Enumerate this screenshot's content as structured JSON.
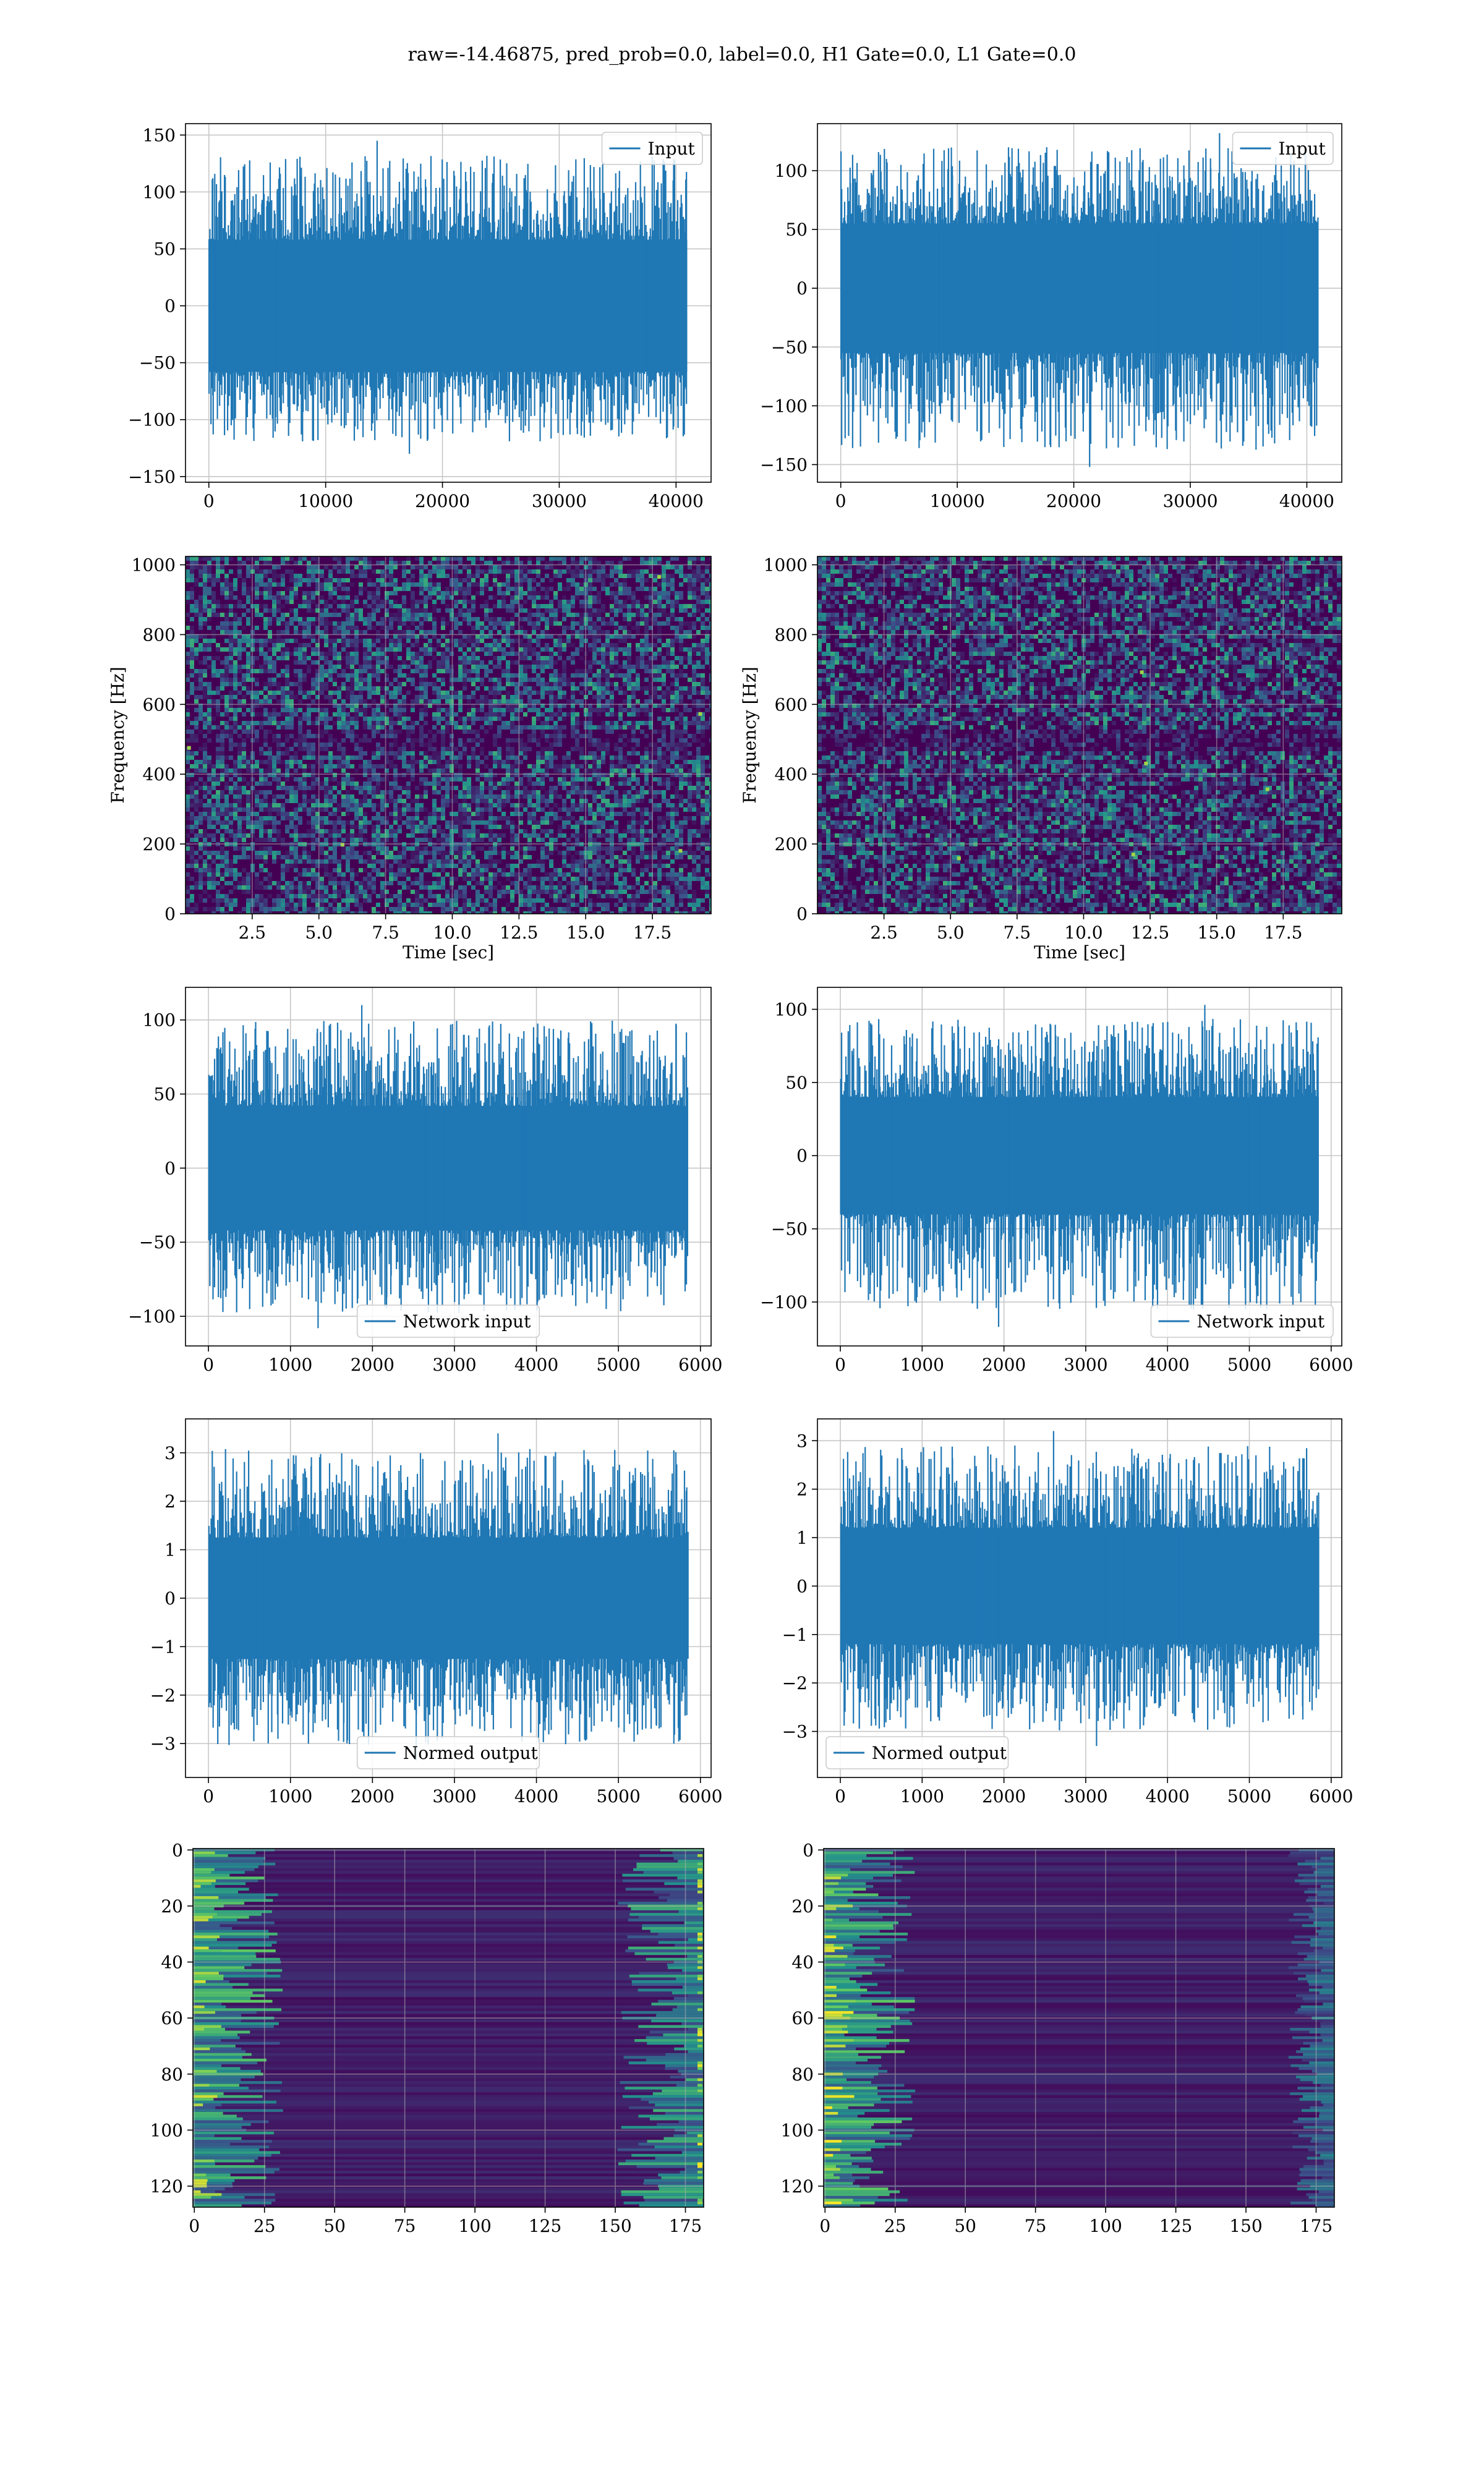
{
  "title": "raw=-14.46875, pred_prob=0.0, label=0.0, H1 Gate=0.0, L1 Gate=0.0",
  "colors": {
    "line": "#1f77b4",
    "grid": "#b0b0b0",
    "axes": "#000000",
    "viridis": [
      "#440154",
      "#3b528b",
      "#21918c",
      "#5ec962",
      "#fde725"
    ]
  },
  "chart_data": [
    {
      "type": "line",
      "row": 0,
      "col": 0,
      "series": [
        {
          "name": "Input"
        }
      ],
      "legend": "top-right",
      "xlim": [
        -2000,
        43000
      ],
      "ylim": [
        -155,
        160
      ],
      "xticks": [
        0,
        10000,
        20000,
        30000,
        40000
      ],
      "xtick_labels": [
        "0",
        "10000",
        "20000",
        "30000",
        "40000"
      ],
      "yticks": [
        -150,
        -100,
        -50,
        0,
        50,
        100,
        150
      ],
      "ytick_labels": [
        "−150",
        "−100",
        "−50",
        "0",
        "50",
        "100",
        "150"
      ],
      "signal": {
        "x_start": 0,
        "x_end": 40960,
        "band": 58,
        "min": -130,
        "max": 145
      },
      "grid": true,
      "xlabel": "",
      "ylabel": ""
    },
    {
      "type": "line",
      "row": 0,
      "col": 1,
      "series": [
        {
          "name": "Input"
        }
      ],
      "legend": "top-right",
      "xlim": [
        -2000,
        43000
      ],
      "ylim": [
        -165,
        140
      ],
      "xticks": [
        0,
        10000,
        20000,
        30000,
        40000
      ],
      "xtick_labels": [
        "0",
        "10000",
        "20000",
        "30000",
        "40000"
      ],
      "yticks": [
        -150,
        -100,
        -50,
        0,
        50,
        100
      ],
      "ytick_labels": [
        "−150",
        "−100",
        "−50",
        "0",
        "50",
        "100"
      ],
      "signal": {
        "x_start": 0,
        "x_end": 40960,
        "band": 55,
        "min": -152,
        "max": 132
      },
      "grid": true,
      "xlabel": "",
      "ylabel": ""
    },
    {
      "type": "heatmap",
      "row": 1,
      "col": 0,
      "xlim": [
        0,
        19.7
      ],
      "ylim": [
        0,
        1024
      ],
      "xticks": [
        2.5,
        5.0,
        7.5,
        10.0,
        12.5,
        15.0,
        17.5
      ],
      "xtick_labels": [
        "2.5",
        "5.0",
        "7.5",
        "10.0",
        "12.5",
        "15.0",
        "17.5"
      ],
      "yticks": [
        0,
        200,
        400,
        600,
        800,
        1000
      ],
      "ytick_labels": [
        "0",
        "200",
        "400",
        "600",
        "800",
        "1000"
      ],
      "xlabel": "Time [sec]",
      "ylabel": "Frequency [Hz]",
      "pattern": "spectrogram",
      "grid": true
    },
    {
      "type": "heatmap",
      "row": 1,
      "col": 1,
      "xlim": [
        0,
        19.7
      ],
      "ylim": [
        0,
        1024
      ],
      "xticks": [
        2.5,
        5.0,
        7.5,
        10.0,
        12.5,
        15.0,
        17.5
      ],
      "xtick_labels": [
        "2.5",
        "5.0",
        "7.5",
        "10.0",
        "12.5",
        "15.0",
        "17.5"
      ],
      "yticks": [
        0,
        200,
        400,
        600,
        800,
        1000
      ],
      "ytick_labels": [
        "0",
        "200",
        "400",
        "600",
        "800",
        "1000"
      ],
      "xlabel": "Time [sec]",
      "ylabel": "Frequency [Hz]",
      "pattern": "spectrogram",
      "grid": true
    },
    {
      "type": "line",
      "row": 2,
      "col": 0,
      "series": [
        {
          "name": "Network input"
        }
      ],
      "legend": "bottom-center",
      "xlim": [
        -280,
        6130
      ],
      "ylim": [
        -120,
        122
      ],
      "xticks": [
        0,
        1000,
        2000,
        3000,
        4000,
        5000,
        6000
      ],
      "xtick_labels": [
        "0",
        "1000",
        "2000",
        "3000",
        "4000",
        "5000",
        "6000"
      ],
      "yticks": [
        -100,
        -50,
        0,
        50,
        100
      ],
      "ytick_labels": [
        "−100",
        "−50",
        "0",
        "50",
        "100"
      ],
      "signal": {
        "x_start": 0,
        "x_end": 5850,
        "band": 42,
        "min": -108,
        "max": 110
      },
      "grid": true,
      "xlabel": "",
      "ylabel": ""
    },
    {
      "type": "line",
      "row": 2,
      "col": 1,
      "series": [
        {
          "name": "Network input"
        }
      ],
      "legend": "bottom-right",
      "xlim": [
        -280,
        6130
      ],
      "ylim": [
        -130,
        115
      ],
      "xticks": [
        0,
        1000,
        2000,
        3000,
        4000,
        5000,
        6000
      ],
      "xtick_labels": [
        "0",
        "1000",
        "2000",
        "3000",
        "4000",
        "5000",
        "6000"
      ],
      "yticks": [
        -100,
        -50,
        0,
        50,
        100
      ],
      "ytick_labels": [
        "−100",
        "−50",
        "0",
        "50",
        "100"
      ],
      "signal": {
        "x_start": 0,
        "x_end": 5850,
        "band": 40,
        "min": -117,
        "max": 103
      },
      "grid": true,
      "xlabel": "",
      "ylabel": ""
    },
    {
      "type": "line",
      "row": 3,
      "col": 0,
      "series": [
        {
          "name": "Normed output"
        }
      ],
      "legend": "bottom-center",
      "xlim": [
        -280,
        6130
      ],
      "ylim": [
        -3.7,
        3.7
      ],
      "xticks": [
        0,
        1000,
        2000,
        3000,
        4000,
        5000,
        6000
      ],
      "xtick_labels": [
        "0",
        "1000",
        "2000",
        "3000",
        "4000",
        "5000",
        "6000"
      ],
      "yticks": [
        -3,
        -2,
        -1,
        0,
        1,
        2,
        3
      ],
      "ytick_labels": [
        "−3",
        "−2",
        "−1",
        "0",
        "1",
        "2",
        "3"
      ],
      "signal": {
        "x_start": 0,
        "x_end": 5850,
        "band": 1.25,
        "min": -3.35,
        "max": 3.4
      },
      "grid": true,
      "xlabel": "",
      "ylabel": ""
    },
    {
      "type": "line",
      "row": 3,
      "col": 1,
      "series": [
        {
          "name": "Normed output"
        }
      ],
      "legend": "bottom-left",
      "xlim": [
        -280,
        6130
      ],
      "ylim": [
        -3.95,
        3.45
      ],
      "xticks": [
        0,
        1000,
        2000,
        3000,
        4000,
        5000,
        6000
      ],
      "xtick_labels": [
        "0",
        "1000",
        "2000",
        "3000",
        "4000",
        "5000",
        "6000"
      ],
      "yticks": [
        -3,
        -2,
        -1,
        0,
        1,
        2,
        3
      ],
      "ytick_labels": [
        "−3",
        "−2",
        "−1",
        "0",
        "1",
        "2",
        "3"
      ],
      "signal": {
        "x_start": 0,
        "x_end": 5850,
        "band": 1.2,
        "min": -3.3,
        "max": 3.2
      },
      "grid": true,
      "xlabel": "",
      "ylabel": ""
    },
    {
      "type": "heatmap",
      "row": 4,
      "col": 0,
      "xlim": [
        -0.5,
        181.5
      ],
      "ylim": [
        127.5,
        -0.5
      ],
      "xticks": [
        0,
        25,
        50,
        75,
        100,
        125,
        150,
        175
      ],
      "xtick_labels": [
        "0",
        "25",
        "50",
        "75",
        "100",
        "125",
        "150",
        "175"
      ],
      "yticks": [
        0,
        20,
        40,
        60,
        80,
        100,
        120
      ],
      "ytick_labels": [
        "0",
        "20",
        "40",
        "60",
        "80",
        "100",
        "120"
      ],
      "xlabel": "",
      "ylabel": "",
      "pattern": "features-both-edges",
      "grid": true
    },
    {
      "type": "heatmap",
      "row": 4,
      "col": 1,
      "xlim": [
        -0.5,
        181.5
      ],
      "ylim": [
        127.5,
        -0.5
      ],
      "xticks": [
        0,
        25,
        50,
        75,
        100,
        125,
        150,
        175
      ],
      "xtick_labels": [
        "0",
        "25",
        "50",
        "75",
        "100",
        "125",
        "150",
        "175"
      ],
      "yticks": [
        0,
        20,
        40,
        60,
        80,
        100,
        120
      ],
      "ytick_labels": [
        "0",
        "20",
        "40",
        "60",
        "80",
        "100",
        "120"
      ],
      "xlabel": "",
      "ylabel": "",
      "pattern": "features-left-edge",
      "grid": true
    }
  ]
}
